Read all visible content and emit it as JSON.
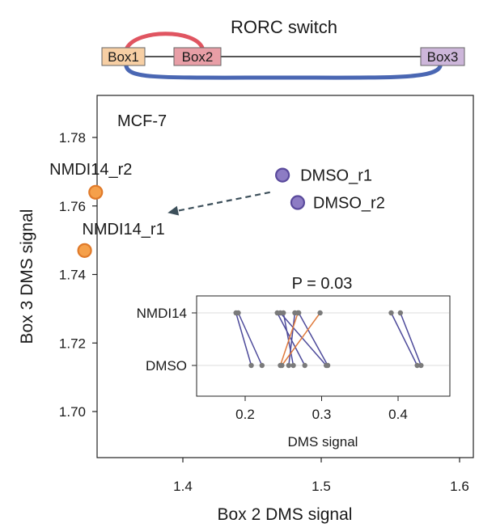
{
  "switch": {
    "title": "RORC switch",
    "boxes": [
      "Box1",
      "Box2",
      "Box3"
    ],
    "colors": {
      "box1": "#f7cfa4",
      "box2": "#e89ea6",
      "box3": "#cdb6da",
      "arc_short": "#e05561",
      "arc_long": "#4a67b3"
    }
  },
  "chart_data": [
    {
      "type": "scatter",
      "annotation": "MCF-7",
      "xlabel": "Box 2 DMS signal",
      "ylabel": "Box 3 DMS signal",
      "xlim": [
        1.3,
        1.6
      ],
      "ylim": [
        1.695,
        1.79
      ],
      "xticks": [
        "1.4",
        "1.5",
        "1.6"
      ],
      "yticks": [
        "1.70",
        "1.72",
        "1.74",
        "1.76",
        "1.78"
      ],
      "points": [
        {
          "label": "NMDI14_r2",
          "x": 1.337,
          "y": 1.764,
          "color": "#f5a04a"
        },
        {
          "label": "NMDI14_r1",
          "x": 1.329,
          "y": 1.747,
          "color": "#f5a04a"
        },
        {
          "label": "DMSO_r1",
          "x": 1.472,
          "y": 1.769,
          "color": "#8d7cc4"
        },
        {
          "label": "DMSO_r2",
          "x": 1.483,
          "y": 1.761,
          "color": "#8d7cc4"
        }
      ],
      "arrow": {
        "from": [
          1.463,
          1.764
        ],
        "to": [
          1.389,
          1.758
        ]
      }
    },
    {
      "type": "line",
      "title": "P = 0.03",
      "xlabel": "DMS signal",
      "xlim": [
        0.14,
        0.48
      ],
      "xticks": [
        "0.2",
        "0.3",
        "0.4"
      ],
      "categories": [
        "NMDI14",
        "DMSO"
      ],
      "pairs": [
        {
          "nmdi14": 0.188,
          "dmso": 0.208,
          "color": "#4d4a9a"
        },
        {
          "nmdi14": 0.191,
          "dmso": 0.222,
          "color": "#4d4a9a"
        },
        {
          "nmdi14": 0.242,
          "dmso": 0.278,
          "color": "#4d4a9a"
        },
        {
          "nmdi14": 0.246,
          "dmso": 0.306,
          "color": "#4d4a9a"
        },
        {
          "nmdi14": 0.25,
          "dmso": 0.263,
          "color": "#4d4a9a"
        },
        {
          "nmdi14": 0.265,
          "dmso": 0.257,
          "color": "#4d4a9a"
        },
        {
          "nmdi14": 0.27,
          "dmso": 0.308,
          "color": "#4d4a9a"
        },
        {
          "nmdi14": 0.269,
          "dmso": 0.246,
          "color": "#e07a3c"
        },
        {
          "nmdi14": 0.298,
          "dmso": 0.248,
          "color": "#e07a3c"
        },
        {
          "nmdi14": 0.391,
          "dmso": 0.425,
          "color": "#4d4a9a"
        },
        {
          "nmdi14": 0.403,
          "dmso": 0.43,
          "color": "#4d4a9a"
        }
      ]
    }
  ]
}
